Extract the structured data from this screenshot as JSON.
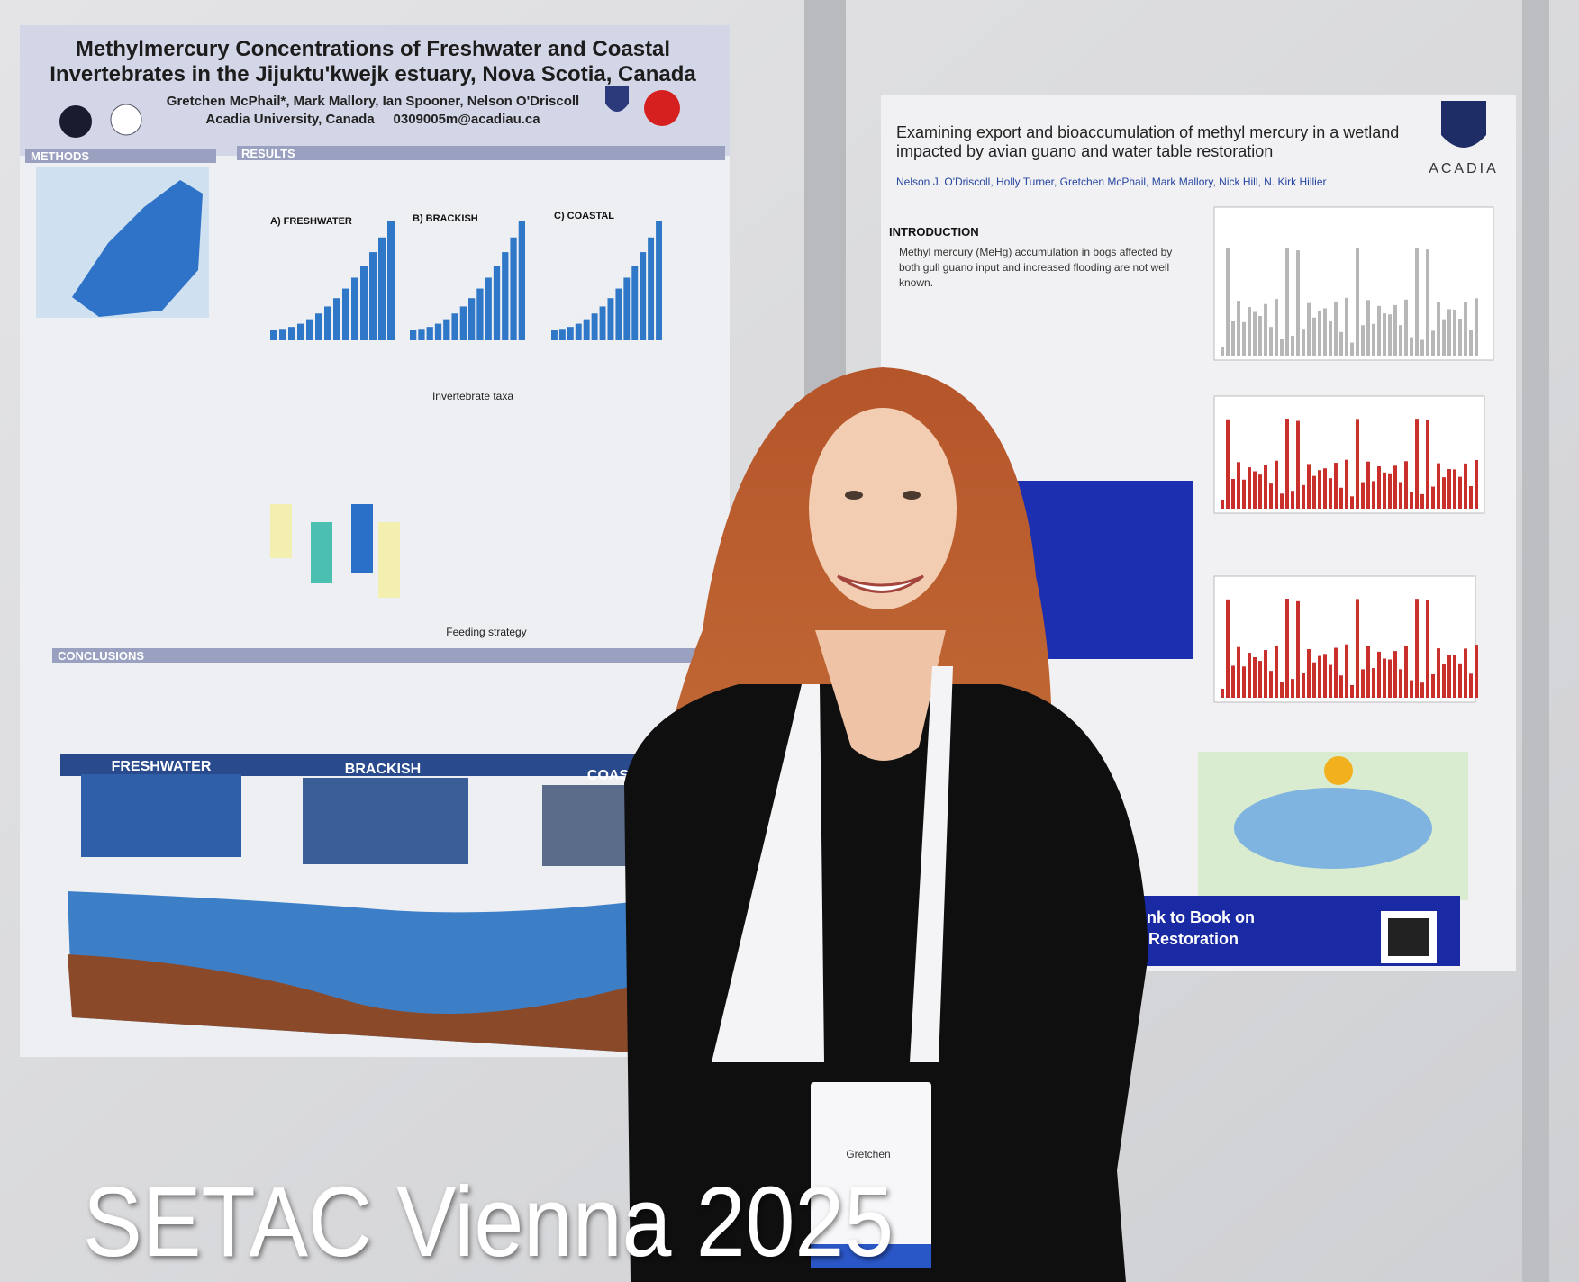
{
  "left_poster": {
    "title": [
      "Methylmercury Concentrations of Freshwater and Coastal",
      "Invertebrates in the Jijuktu'kwejk estuary, Nova Scotia, Canada"
    ],
    "authors": "Gretchen McPhail*, Mark Mallory, Ian Spooner, Nelson O'Driscoll",
    "affiliation": "Acadia University, Canada     0309005m@acadiau.ca",
    "sections": [
      "METHODS",
      "RESULTS",
      "CONCLUSIONS"
    ],
    "panels": [
      "A) FRESHWATER",
      "B) BRACKISH",
      "C) COASTAL"
    ],
    "x_label": "Invertebrate taxa",
    "x_label_2": "Feeding strategy",
    "environments": [
      "FRESHWATER",
      "BRACKISH",
      "COASTAL"
    ]
  },
  "right_poster": {
    "title": [
      "Examining export and bioaccumulation of methyl mercury in a wetland",
      "impacted by avian guano and water table restoration"
    ],
    "authors": "Nelson J. O'Driscoll, Holly Turner, Gretchen McPhail, Mark Mallory, Nick Hill, N. Kirk Hillier",
    "logo": "ACADIA",
    "section": "INTRODUCTION",
    "bullets": [
      "Methyl mercury (MeHg) accumulation in bogs affected by",
      "both gull guano input and increased flooding are not well",
      "known."
    ],
    "link": [
      "Link to Book on",
      "Restoration"
    ]
  },
  "badge": {
    "name": "Gretchen"
  },
  "caption": "SETAC Vienna 2025"
}
